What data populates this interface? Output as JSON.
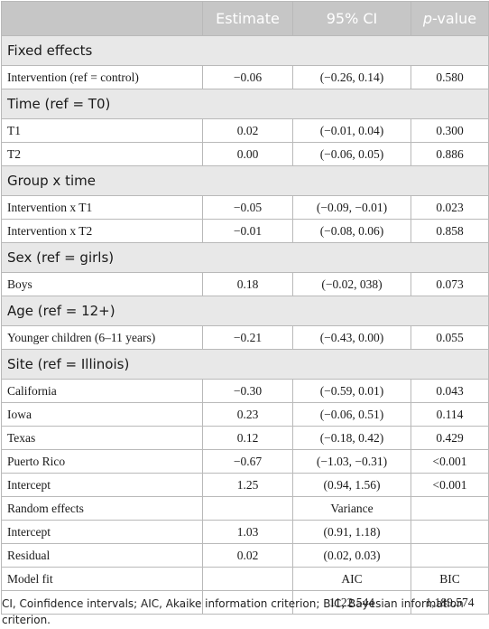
{
  "header": {
    "col1": "",
    "estimate": "Estimate",
    "ci": "95% CI",
    "p_italic": "p",
    "p_rest": "-value"
  },
  "sections": {
    "fixed_effects": "Fixed effects",
    "time": "Time (ref = T0)",
    "group_time": "Group x time",
    "sex": "Sex (ref = girls)",
    "age": "Age (ref = 12+)",
    "site": "Site (ref = Illinois)"
  },
  "rows": {
    "intervention": {
      "label": "Intervention (ref = control)",
      "estimate": "−0.06",
      "ci": "(−0.26, 0.14)",
      "p": "0.580"
    },
    "t1": {
      "label": "T1",
      "estimate": "0.02",
      "ci": "(−0.01, 0.04)",
      "p": "0.300"
    },
    "t2": {
      "label": "T2",
      "estimate": "0.00",
      "ci": "(−0.06, 0.05)",
      "p": "0.886"
    },
    "int_t1": {
      "label": "Intervention x T1",
      "estimate": "−0.05",
      "ci": "(−0.09, −0.01)",
      "p": "0.023"
    },
    "int_t2": {
      "label": "Intervention x T2",
      "estimate": "−0.01",
      "ci": "(−0.08, 0.06)",
      "p": "0.858"
    },
    "boys": {
      "label": "Boys",
      "estimate": "0.18",
      "ci": "(−0.02, 038)",
      "p": "0.073"
    },
    "younger": {
      "label": "Younger children (6–11 years)",
      "estimate": "−0.21",
      "ci": "(−0.43, 0.00)",
      "p": "0.055"
    },
    "california": {
      "label": "California",
      "estimate": "−0.30",
      "ci": "(−0.59, 0.01)",
      "p": "0.043"
    },
    "iowa": {
      "label": "Iowa",
      "estimate": "0.23",
      "ci": "(−0.06, 0.51)",
      "p": "0.114"
    },
    "texas": {
      "label": "Texas",
      "estimate": "0.12",
      "ci": "(−0.18, 0.42)",
      "p": "0.429"
    },
    "puerto_rico": {
      "label": "Puerto Rico",
      "estimate": "−0.67",
      "ci": "(−1.03, −0.31)",
      "p": "<0.001"
    },
    "intercept_fixed": {
      "label": "Intercept",
      "estimate": "1.25",
      "ci": "(0.94, 1.56)",
      "p": "<0.001"
    },
    "random_effects": {
      "label": "Random effects",
      "estimate": "",
      "ci": "Variance",
      "p": ""
    },
    "intercept_random": {
      "label": "Intercept",
      "estimate": "1.03",
      "ci": "(0.91, 1.18)",
      "p": ""
    },
    "residual": {
      "label": "Residual",
      "estimate": "0.02",
      "ci": "(0.02, 0.03)",
      "p": ""
    },
    "model_fit": {
      "label": "Model fit",
      "estimate": "",
      "ci": "AIC",
      "p": "BIC"
    },
    "fit_values": {
      "label": "",
      "estimate": "",
      "ci": "1122.544",
      "p": "1,189.574"
    }
  },
  "footnote": "CI, Coinfidence intervals; AIC, Akaike information criterion; BIC, Bayesian information criterion."
}
